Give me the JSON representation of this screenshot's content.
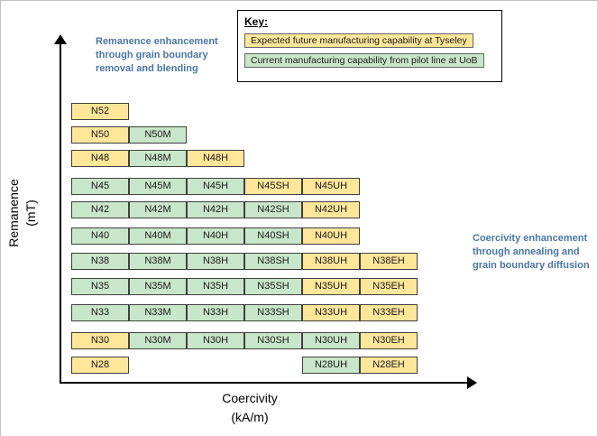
{
  "axes": {
    "y_label_line1": "Remanence",
    "y_label_line2": "(mT)",
    "x_label_line1": "Coercivity",
    "x_label_line2": "(kA/m)"
  },
  "key": {
    "title": "Key:",
    "entries": [
      {
        "type": "future",
        "label": "Expected future manufacturing capability at Tyseley"
      },
      {
        "type": "current",
        "label": "Current manufacturing capability from pilot line at UoB"
      }
    ]
  },
  "annotations": {
    "remanence": "Remanence enhancement through grain boundary removal and blending",
    "coercivity": "Coercivity enhancement through annealing and grain boundary diffusion"
  },
  "colors": {
    "future": "#FFE699",
    "current": "#C8E6C9",
    "annotation_text": "#4A76A8"
  },
  "grid": {
    "rows": [
      {
        "grade": "N52",
        "cells": [
          {
            "label": "N52",
            "col": 0,
            "type": "future"
          }
        ]
      },
      {
        "grade": "N50",
        "cells": [
          {
            "label": "N50",
            "col": 0,
            "type": "future"
          },
          {
            "label": "N50M",
            "col": 1,
            "type": "current"
          }
        ]
      },
      {
        "grade": "N48",
        "cells": [
          {
            "label": "N48",
            "col": 0,
            "type": "future"
          },
          {
            "label": "N48M",
            "col": 1,
            "type": "current"
          },
          {
            "label": "N48H",
            "col": 2,
            "type": "future"
          }
        ]
      },
      {
        "grade": "N45",
        "cells": [
          {
            "label": "N45",
            "col": 0,
            "type": "current"
          },
          {
            "label": "N45M",
            "col": 1,
            "type": "current"
          },
          {
            "label": "N45H",
            "col": 2,
            "type": "current"
          },
          {
            "label": "N45SH",
            "col": 3,
            "type": "future"
          },
          {
            "label": "N45UH",
            "col": 4,
            "type": "future"
          }
        ]
      },
      {
        "grade": "N42",
        "cells": [
          {
            "label": "N42",
            "col": 0,
            "type": "current"
          },
          {
            "label": "N42M",
            "col": 1,
            "type": "current"
          },
          {
            "label": "N42H",
            "col": 2,
            "type": "current"
          },
          {
            "label": "N42SH",
            "col": 3,
            "type": "current"
          },
          {
            "label": "N42UH",
            "col": 4,
            "type": "future"
          }
        ]
      },
      {
        "grade": "N40",
        "cells": [
          {
            "label": "N40",
            "col": 0,
            "type": "current"
          },
          {
            "label": "N40M",
            "col": 1,
            "type": "current"
          },
          {
            "label": "N40H",
            "col": 2,
            "type": "current"
          },
          {
            "label": "N40SH",
            "col": 3,
            "type": "current"
          },
          {
            "label": "N40UH",
            "col": 4,
            "type": "future"
          }
        ]
      },
      {
        "grade": "N38",
        "cells": [
          {
            "label": "N38",
            "col": 0,
            "type": "current"
          },
          {
            "label": "N38M",
            "col": 1,
            "type": "current"
          },
          {
            "label": "N38H",
            "col": 2,
            "type": "current"
          },
          {
            "label": "N38SH",
            "col": 3,
            "type": "current"
          },
          {
            "label": "N38UH",
            "col": 4,
            "type": "future"
          },
          {
            "label": "N38EH",
            "col": 5,
            "type": "future"
          }
        ]
      },
      {
        "grade": "N35",
        "cells": [
          {
            "label": "N35",
            "col": 0,
            "type": "current"
          },
          {
            "label": "N35M",
            "col": 1,
            "type": "current"
          },
          {
            "label": "N35H",
            "col": 2,
            "type": "current"
          },
          {
            "label": "N35SH",
            "col": 3,
            "type": "current"
          },
          {
            "label": "N35UH",
            "col": 4,
            "type": "future"
          },
          {
            "label": "N35EH",
            "col": 5,
            "type": "future"
          }
        ]
      },
      {
        "grade": "N33",
        "cells": [
          {
            "label": "N33",
            "col": 0,
            "type": "current"
          },
          {
            "label": "N33M",
            "col": 1,
            "type": "current"
          },
          {
            "label": "N33H",
            "col": 2,
            "type": "current"
          },
          {
            "label": "N33SH",
            "col": 3,
            "type": "current"
          },
          {
            "label": "N33UH",
            "col": 4,
            "type": "future"
          },
          {
            "label": "N33EH",
            "col": 5,
            "type": "future"
          }
        ]
      },
      {
        "grade": "N30",
        "cells": [
          {
            "label": "N30",
            "col": 0,
            "type": "future"
          },
          {
            "label": "N30M",
            "col": 1,
            "type": "current"
          },
          {
            "label": "N30H",
            "col": 2,
            "type": "current"
          },
          {
            "label": "N30SH",
            "col": 3,
            "type": "current"
          },
          {
            "label": "N30UH",
            "col": 4,
            "type": "current"
          },
          {
            "label": "N30EH",
            "col": 5,
            "type": "future"
          }
        ]
      },
      {
        "grade": "N28",
        "cells": [
          {
            "label": "N28",
            "col": 0,
            "type": "future"
          },
          {
            "label": "N28UH",
            "col": 4,
            "type": "current"
          },
          {
            "label": "N28EH",
            "col": 5,
            "type": "future"
          }
        ]
      }
    ]
  }
}
